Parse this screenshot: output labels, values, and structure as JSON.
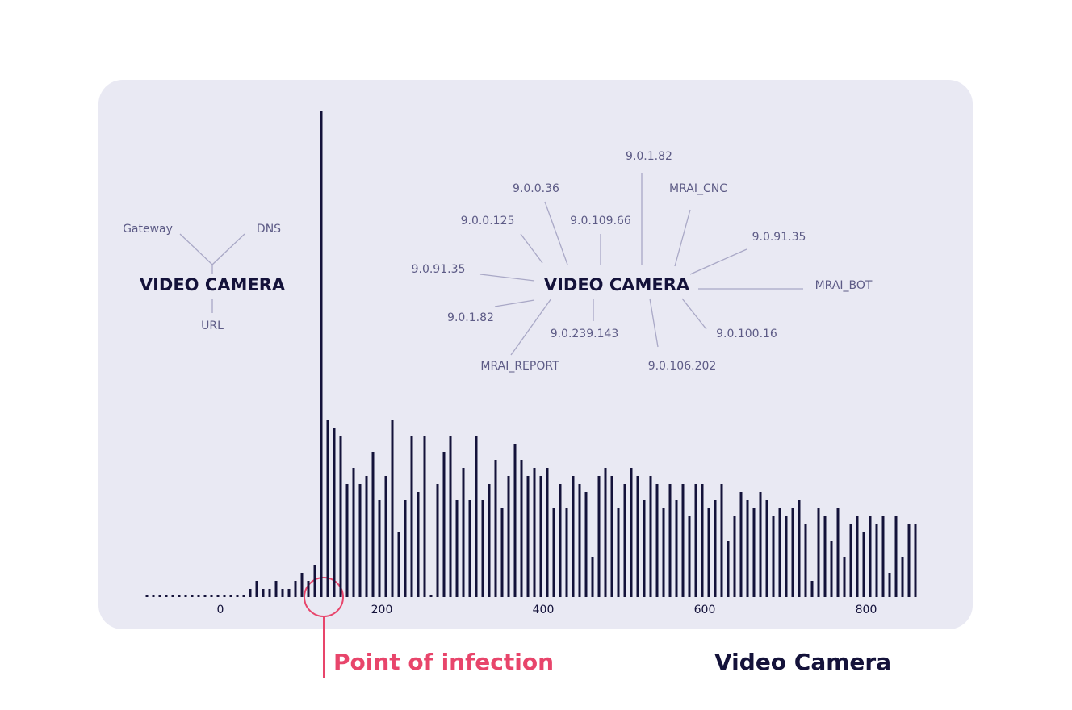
{
  "chart_data": {
    "type": "bar",
    "color": "#14123a",
    "x": [
      -91,
      -83,
      -75,
      -67,
      -59,
      -51,
      -43,
      -35,
      -27,
      -19,
      -11,
      -3,
      5,
      13,
      21,
      29,
      37,
      45,
      53,
      61,
      69,
      77,
      85,
      93,
      101,
      109,
      117,
      125,
      133,
      141,
      149,
      157,
      165,
      173,
      181,
      189,
      197,
      205,
      213,
      221,
      229,
      237,
      245,
      253,
      261,
      269,
      277,
      285,
      293,
      301,
      309,
      317,
      325,
      333,
      341,
      349,
      357,
      365,
      373,
      381,
      389,
      397,
      405,
      413,
      421,
      429,
      437,
      445,
      453,
      461,
      469,
      477,
      485,
      493,
      501,
      509,
      517,
      525,
      533,
      541,
      549,
      557,
      565,
      573,
      581,
      589,
      597,
      605,
      613,
      621,
      629,
      637,
      645,
      653,
      661,
      669,
      677,
      685,
      693,
      701,
      709,
      717,
      725,
      733,
      741,
      749,
      757,
      765,
      773,
      781,
      789,
      797,
      805,
      813,
      821,
      829,
      837,
      845,
      853,
      861
    ],
    "values": [
      2,
      2,
      2,
      2,
      2,
      2,
      2,
      2,
      2,
      2,
      2,
      2,
      2,
      2,
      2,
      2,
      10,
      20,
      10,
      10,
      20,
      10,
      10,
      20,
      30,
      20,
      40,
      602,
      220,
      210,
      200,
      140,
      160,
      140,
      150,
      180,
      120,
      150,
      220,
      80,
      120,
      200,
      130,
      200,
      2,
      140,
      180,
      200,
      120,
      160,
      120,
      200,
      120,
      140,
      170,
      110,
      150,
      190,
      170,
      150,
      160,
      150,
      160,
      110,
      140,
      110,
      150,
      140,
      130,
      50,
      150,
      160,
      150,
      110,
      140,
      160,
      150,
      120,
      150,
      140,
      110,
      140,
      120,
      140,
      100,
      140,
      140,
      110,
      120,
      140,
      70,
      100,
      130,
      120,
      110,
      130,
      120,
      100,
      110,
      100,
      110,
      120,
      90,
      20,
      110,
      100,
      70,
      110,
      50,
      90,
      100,
      80,
      100,
      90,
      100,
      30,
      100,
      50,
      90,
      90
    ],
    "xlim": [
      -95,
      870
    ],
    "xticks": [
      0,
      200,
      400,
      600,
      800
    ],
    "ylim": [
      0,
      610
    ],
    "annotations": {
      "infection": "Point of infection",
      "caption": "Video Camera"
    }
  },
  "diagrams": [
    {
      "center": "VIDEO CAMERA",
      "labels": [
        "Gateway",
        "DNS",
        "URL"
      ]
    },
    {
      "center": "VIDEO CAMERA",
      "labels": [
        "9.0.1.82",
        "MRAI_CNC",
        "9.0.91.35",
        "MRAI_BOT",
        "9.0.100.16",
        "9.0.106.202",
        "9.0.239.143",
        "MRAI_REPORT",
        "9.0.1.82",
        "9.0.91.35",
        "9.0.0.125",
        "9.0.0.36",
        "9.0.109.66"
      ]
    }
  ]
}
